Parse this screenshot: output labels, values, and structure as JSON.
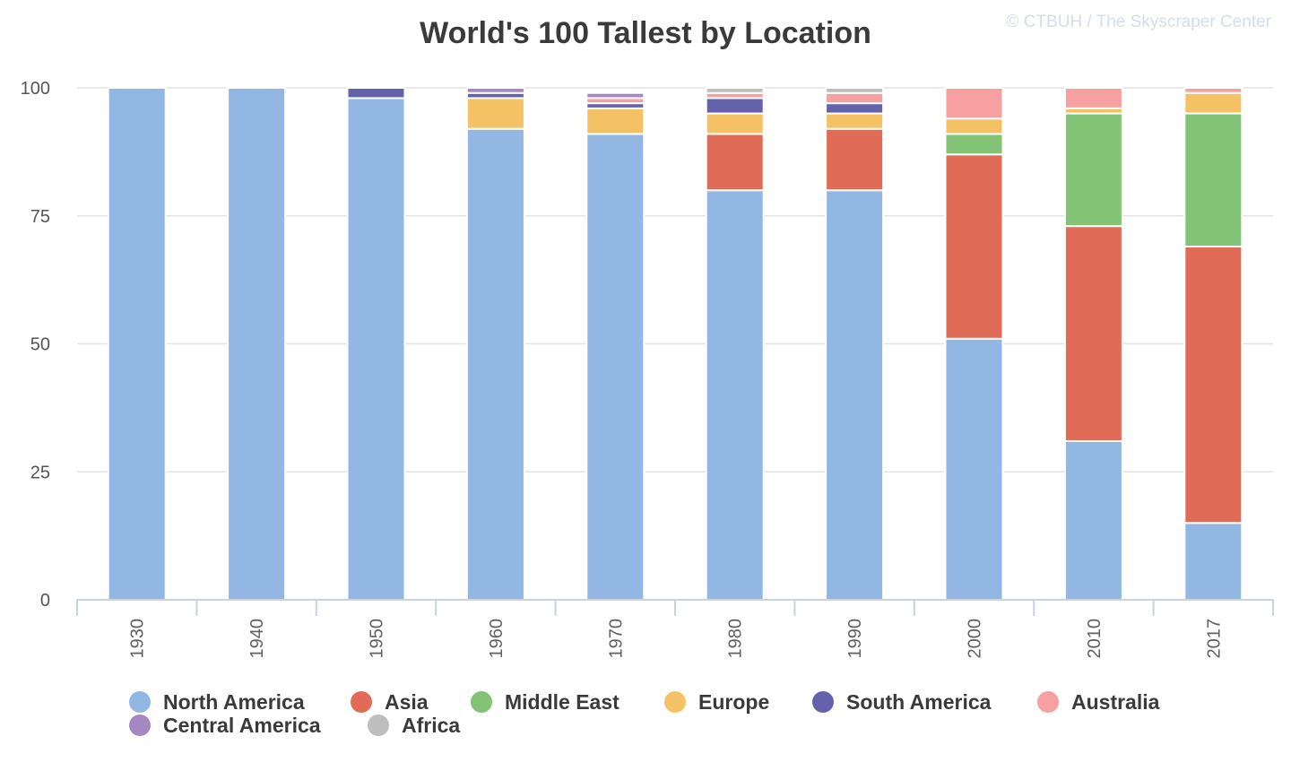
{
  "title": "World's 100 Tallest by Location",
  "credit": "© CTBUH / The Skyscraper Center",
  "chart_data": {
    "type": "bar",
    "stacked": true,
    "title": "World's 100 Tallest by Location",
    "xlabel": "",
    "ylabel": "",
    "ylim": [
      0,
      100
    ],
    "yticks": [
      0,
      25,
      50,
      75,
      100
    ],
    "grid": true,
    "legend_position": "bottom",
    "categories": [
      "1930",
      "1940",
      "1950",
      "1960",
      "1970",
      "1980",
      "1990",
      "2000",
      "2010",
      "2017"
    ],
    "series": [
      {
        "name": "North America",
        "color": "#93b7e3",
        "values": [
          100,
          100,
          98,
          92,
          91,
          80,
          80,
          51,
          31,
          15
        ]
      },
      {
        "name": "Asia",
        "color": "#e06b56",
        "values": [
          0,
          0,
          0,
          0,
          0,
          11,
          12,
          36,
          42,
          54
        ]
      },
      {
        "name": "Middle East",
        "color": "#82c375",
        "values": [
          0,
          0,
          0,
          0,
          0,
          0,
          0,
          4,
          22,
          26
        ]
      },
      {
        "name": "Europe",
        "color": "#f4c265",
        "values": [
          0,
          0,
          0,
          6,
          5,
          4,
          3,
          3,
          1,
          4
        ]
      },
      {
        "name": "South America",
        "color": "#6462ad",
        "values": [
          0,
          0,
          2,
          1,
          1,
          3,
          2,
          0,
          0,
          0
        ]
      },
      {
        "name": "Australia",
        "color": "#f6a0a1",
        "values": [
          0,
          0,
          0,
          0,
          1,
          1,
          2,
          6,
          4,
          1
        ]
      },
      {
        "name": "Central America",
        "color": "#a588c1",
        "values": [
          0,
          0,
          0,
          1,
          1,
          0,
          0,
          0,
          0,
          0
        ]
      },
      {
        "name": "Africa",
        "color": "#bebebe",
        "values": [
          0,
          0,
          0,
          0,
          0,
          1,
          1,
          0,
          0,
          0
        ]
      }
    ]
  }
}
